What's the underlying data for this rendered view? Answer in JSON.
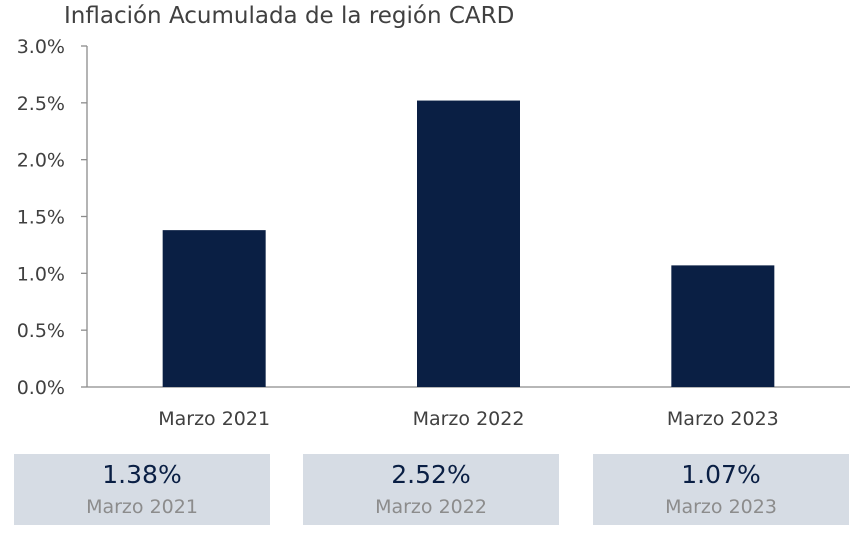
{
  "chart_data": {
    "type": "bar",
    "title": "Inflación Acumulada de la región CARD",
    "categories": [
      "Marzo 2021",
      "Marzo 2022",
      "Marzo 2023"
    ],
    "values": [
      1.38,
      2.52,
      1.07
    ],
    "y_ticks": [
      "0.0%",
      "0.5%",
      "1.0%",
      "1.5%",
      "2.0%",
      "2.5%",
      "3.0%"
    ],
    "ylim": [
      0,
      3.0
    ],
    "grid": false,
    "xlabel": "",
    "ylabel": "",
    "bar_color": "#0a1f44",
    "axis_color": "#8c8c8c"
  },
  "summary": {
    "items": [
      {
        "value": "1.38%",
        "label": "Marzo 2021"
      },
      {
        "value": "2.52%",
        "label": "Marzo 2022"
      },
      {
        "value": "1.07%",
        "label": "Marzo 2023"
      }
    ],
    "box_color": "#d6dce4",
    "value_color": "#0a1f44",
    "label_color": "#8c8c8c"
  }
}
